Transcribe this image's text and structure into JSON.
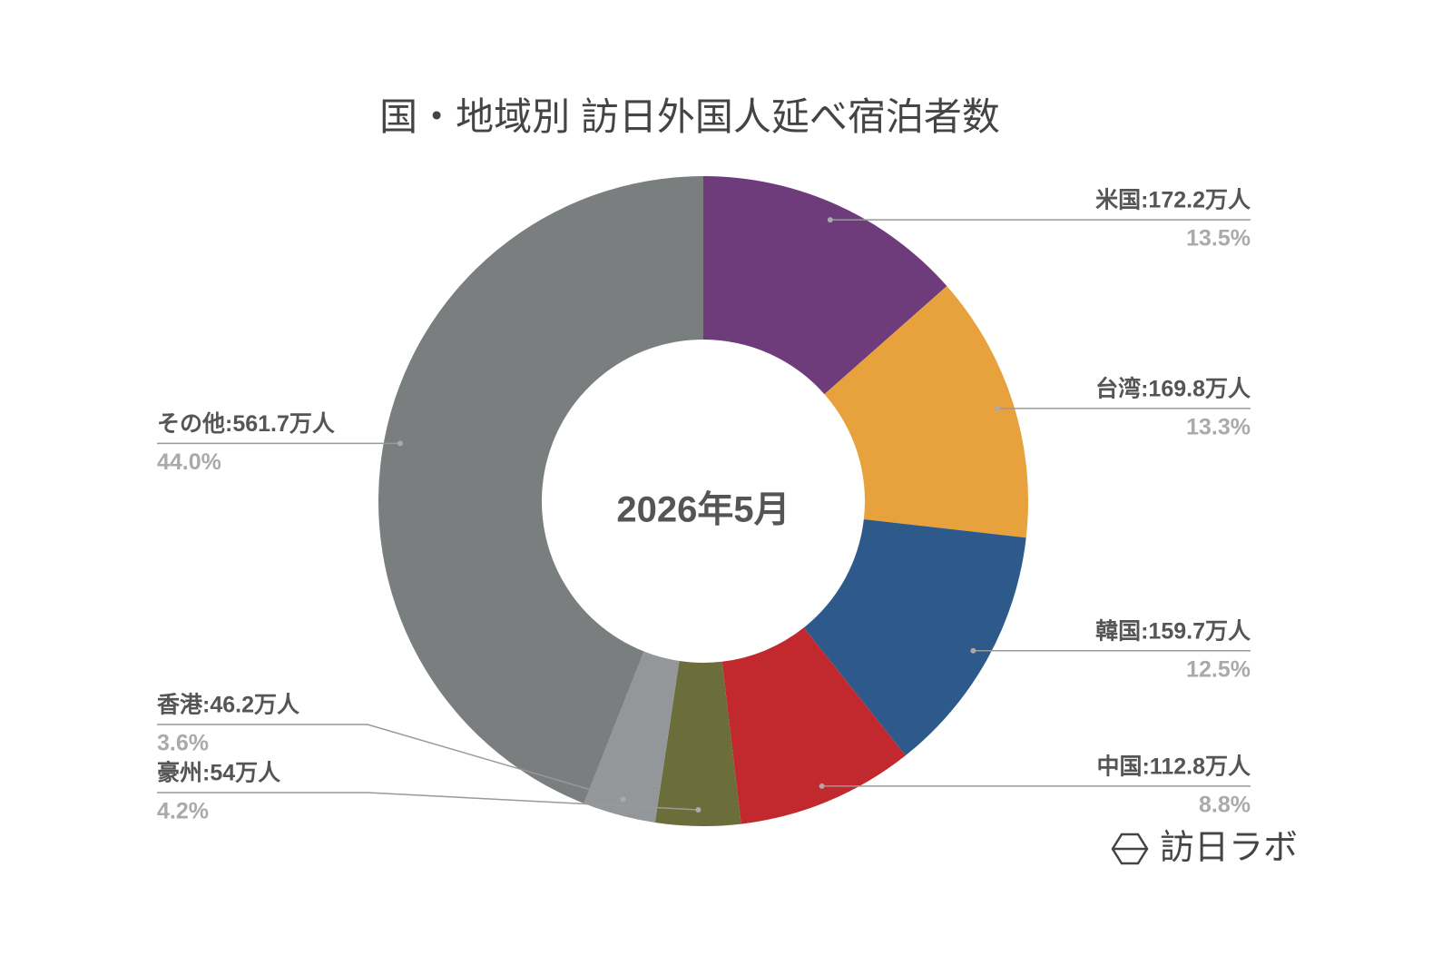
{
  "chart_data": {
    "type": "donut",
    "title": "国・地域別 訪日外国人延べ宿泊者数",
    "center_label": "2026年5月",
    "values": [
      172.2,
      169.8,
      159.7,
      112.8,
      54,
      46.2,
      561.7
    ],
    "value_labels": [
      "米国:172.2万人",
      "台湾:169.8万人",
      "韓国:159.7万人",
      "中国:112.8万人",
      "豪州:54万人",
      "香港:46.2万人",
      "その他:561.7万人"
    ],
    "percents": [
      13.5,
      13.3,
      12.5,
      8.8,
      4.2,
      3.6,
      44.0
    ],
    "percent_labels": [
      "13.5%",
      "13.3%",
      "12.5%",
      "8.8%",
      "4.2%",
      "3.6%",
      "44.0%"
    ],
    "colors": [
      "#6e3b7b",
      "#e8a23d",
      "#2e5a8b",
      "#c1292f",
      "#6b6e3a",
      "#94979a",
      "#7b7e7f"
    ]
  },
  "watermark": "訪日ラボ"
}
